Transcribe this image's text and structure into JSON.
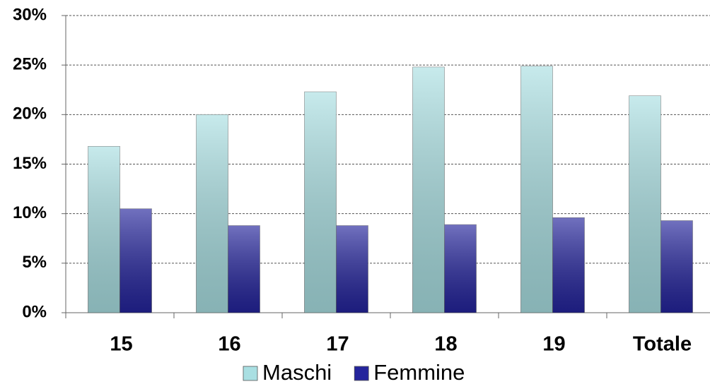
{
  "chart_data": {
    "type": "bar",
    "categories": [
      "15",
      "16",
      "17",
      "18",
      "19",
      "Totale"
    ],
    "series": [
      {
        "name": "Maschi",
        "color": "#a9dfe2",
        "values": [
          16.8,
          20.0,
          22.3,
          24.8,
          24.9,
          21.9
        ]
      },
      {
        "name": "Femmine",
        "color": "#24249c",
        "values": [
          10.5,
          8.8,
          8.8,
          8.9,
          9.6,
          9.3
        ]
      }
    ],
    "ylim": [
      0,
      30
    ],
    "yticks": [
      {
        "value": 0,
        "label": "0%"
      },
      {
        "value": 5,
        "label": "5%"
      },
      {
        "value": 10,
        "label": "10%"
      },
      {
        "value": 15,
        "label": "15%"
      },
      {
        "value": 20,
        "label": "20%"
      },
      {
        "value": 25,
        "label": "25%"
      },
      {
        "value": 30,
        "label": "30%"
      }
    ],
    "grid": true,
    "legend": "bottom"
  }
}
